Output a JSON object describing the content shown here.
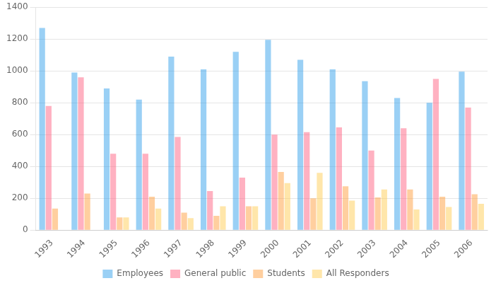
{
  "chart_data": {
    "type": "bar",
    "categories": [
      "1993",
      "1994",
      "1995",
      "1996",
      "1997",
      "1998",
      "1999",
      "2000",
      "2001",
      "2002",
      "2003",
      "2004",
      "2005",
      "2006"
    ],
    "series": [
      {
        "name": "Employees",
        "values": [
          1270,
          990,
          890,
          820,
          1090,
          1010,
          1120,
          1195,
          1070,
          1010,
          935,
          830,
          800,
          995
        ]
      },
      {
        "name": "General public",
        "values": [
          780,
          960,
          480,
          480,
          585,
          245,
          330,
          600,
          615,
          645,
          500,
          640,
          950,
          770
        ]
      },
      {
        "name": "Students",
        "values": [
          135,
          230,
          80,
          210,
          110,
          90,
          150,
          365,
          200,
          275,
          205,
          255,
          210,
          225
        ]
      },
      {
        "name": "All Responders",
        "values": [
          0,
          0,
          80,
          135,
          75,
          150,
          150,
          295,
          360,
          185,
          255,
          130,
          145,
          165
        ]
      }
    ],
    "ylim": [
      0,
      1400
    ],
    "yticks": [
      0,
      200,
      400,
      600,
      800,
      1000,
      1200,
      1400
    ],
    "grid": true,
    "legend": "bottom"
  }
}
